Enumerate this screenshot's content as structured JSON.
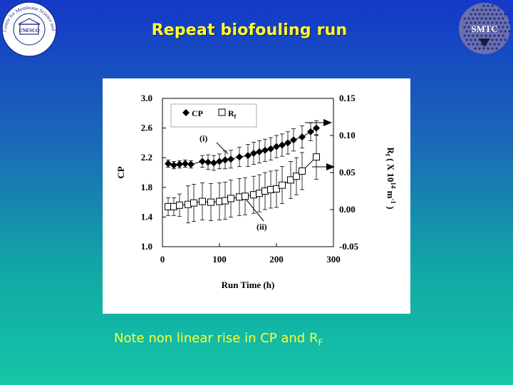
{
  "slide": {
    "title": "Repeat biofouling run",
    "note_main": "Note non linear rise in CP and R",
    "note_sub": "F"
  },
  "logos": {
    "left": {
      "icon": "centre-for-membrane-science-logo",
      "text": "Centre for Membrane Science and Technology",
      "emblem": "UNESCO"
    },
    "right": {
      "icon": "smtc-logo",
      "text": "SMTC"
    }
  },
  "chart_data": {
    "type": "scatter",
    "x_label": "Run Time (h)",
    "y_label": "CP",
    "y2_label": "R f ( X 10 14 m-1 )",
    "xlim": [
      0,
      300
    ],
    "ylim": [
      1.0,
      3.0
    ],
    "y2lim": [
      -0.05,
      0.15
    ],
    "x_ticks": [
      "0",
      "100",
      "200",
      "300"
    ],
    "y_ticks": [
      "1.0",
      "1.4",
      "1.8",
      "2.2",
      "2.6",
      "3.0"
    ],
    "y2_ticks": [
      "-0.05",
      "0.00",
      "0.05",
      "0.10",
      "0.15"
    ],
    "grid": false,
    "legend_position": "top-left",
    "annotations": [
      "(i)",
      "(ii)"
    ],
    "series": [
      {
        "name": "CP",
        "axis": "left",
        "marker": "diamond-filled",
        "color": "#000000",
        "x": [
          10,
          20,
          30,
          40,
          50,
          70,
          80,
          90,
          100,
          110,
          120,
          135,
          150,
          160,
          170,
          180,
          190,
          200,
          210,
          220,
          230,
          245,
          260,
          270
        ],
        "y": [
          2.12,
          2.1,
          2.11,
          2.12,
          2.11,
          2.15,
          2.14,
          2.13,
          2.15,
          2.17,
          2.18,
          2.21,
          2.23,
          2.26,
          2.28,
          2.3,
          2.32,
          2.35,
          2.37,
          2.4,
          2.44,
          2.48,
          2.55,
          2.6
        ],
        "err": [
          0.05,
          0.05,
          0.05,
          0.05,
          0.05,
          0.08,
          0.1,
          0.1,
          0.1,
          0.12,
          0.12,
          0.13,
          0.15,
          0.15,
          0.15,
          0.15,
          0.15,
          0.15,
          0.15,
          0.15,
          0.15,
          0.15,
          0.12,
          0.1
        ]
      },
      {
        "name": "R f",
        "axis": "right",
        "marker": "square-open",
        "color": "#000000",
        "x": [
          10,
          20,
          30,
          45,
          55,
          70,
          85,
          100,
          110,
          120,
          135,
          145,
          160,
          170,
          180,
          190,
          200,
          210,
          225,
          235,
          245,
          270
        ],
        "y": [
          0.004,
          0.004,
          0.006,
          0.007,
          0.009,
          0.011,
          0.01,
          0.011,
          0.012,
          0.015,
          0.017,
          0.018,
          0.02,
          0.022,
          0.025,
          0.027,
          0.028,
          0.033,
          0.04,
          0.045,
          0.052,
          0.071
        ],
        "err": [
          0.012,
          0.012,
          0.015,
          0.025,
          0.025,
          0.025,
          0.025,
          0.025,
          0.025,
          0.025,
          0.025,
          0.025,
          0.025,
          0.025,
          0.025,
          0.025,
          0.025,
          0.025,
          0.025,
          0.025,
          0.025,
          0.03
        ]
      }
    ]
  }
}
